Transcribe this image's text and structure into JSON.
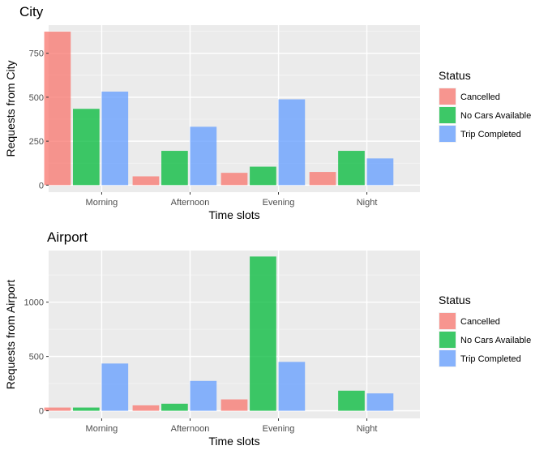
{
  "chart_data": [
    {
      "type": "bar",
      "title": "City",
      "xlabel": "Time slots",
      "ylabel": "Requests from City",
      "categories": [
        "Morning",
        "Afternoon",
        "Evening",
        "Night"
      ],
      "yticks": [
        0,
        250,
        500,
        750
      ],
      "ylim": [
        -40,
        910
      ],
      "grid": true,
      "legend_title": "Status",
      "legend_position": "right",
      "series": [
        {
          "name": "Cancelled",
          "color": "#F8766D",
          "values": [
            873,
            50,
            70,
            75
          ]
        },
        {
          "name": "No Cars Available",
          "color": "#00BA38",
          "values": [
            434,
            195,
            105,
            195
          ]
        },
        {
          "name": "Trip Completed",
          "color": "#619CFF",
          "values": [
            532,
            332,
            488,
            152
          ]
        }
      ]
    },
    {
      "type": "bar",
      "title": "Airport",
      "xlabel": "Time slots",
      "ylabel": "Requests from Airport",
      "categories": [
        "Morning",
        "Afternoon",
        "Evening",
        "Night"
      ],
      "yticks": [
        0,
        500,
        1000
      ],
      "ylim": [
        -70,
        1475
      ],
      "grid": true,
      "legend_title": "Status",
      "legend_position": "right",
      "series": [
        {
          "name": "Cancelled",
          "color": "#F8766D",
          "values": [
            30,
            50,
            105,
            0
          ]
        },
        {
          "name": "No Cars Available",
          "color": "#00BA38",
          "values": [
            30,
            65,
            1420,
            185
          ]
        },
        {
          "name": "Trip Completed",
          "color": "#619CFF",
          "values": [
            435,
            275,
            450,
            160
          ]
        }
      ]
    }
  ]
}
